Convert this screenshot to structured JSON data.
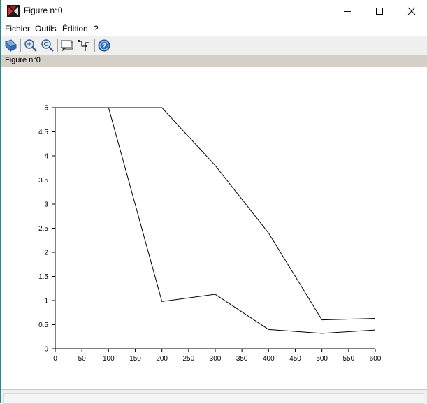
{
  "window": {
    "title": "Figure n°0",
    "icon": "scilab-figure-icon"
  },
  "menu": {
    "items": [
      "Fichier",
      "Outils",
      "Édition",
      "?"
    ]
  },
  "toolbar": {
    "buttons": [
      "rotate-3d-icon",
      "zoom-in-icon",
      "zoom-reset-icon",
      "datatip-icon",
      "edit-axes-icon",
      "help-icon"
    ]
  },
  "figure_tab": {
    "label": "Figure n°0"
  },
  "chart_data": {
    "type": "line",
    "title": "",
    "xlabel": "",
    "ylabel": "",
    "xlim": [
      0,
      600
    ],
    "ylim": [
      0,
      5
    ],
    "xticks": [
      0,
      50,
      100,
      150,
      200,
      250,
      300,
      350,
      400,
      450,
      500,
      550,
      600
    ],
    "xtick_labels": [
      "0",
      "50",
      "100",
      "150",
      "200",
      "250",
      "300",
      "350",
      "400",
      "450",
      "500",
      "550",
      "600"
    ],
    "yticks": [
      0,
      0.5,
      1,
      1.5,
      2,
      2.5,
      3,
      3.5,
      4,
      4.5,
      5
    ],
    "ytick_labels": [
      "0",
      "0.5",
      "1",
      "1.5",
      "2",
      "2.5",
      "3",
      "3.5",
      "4",
      "4.5",
      "5"
    ],
    "grid": false,
    "series": [
      {
        "x": [
          0,
          100,
          200,
          300,
          400,
          500,
          600
        ],
        "values": [
          5,
          5,
          5,
          3.8,
          2.4,
          0.6,
          0.63
        ],
        "color": "#000000"
      },
      {
        "x": [
          0,
          100,
          200,
          300,
          400,
          500,
          600
        ],
        "values": [
          5,
          5,
          0.98,
          1.13,
          0.4,
          0.32,
          0.39
        ],
        "color": "#000000"
      }
    ]
  }
}
